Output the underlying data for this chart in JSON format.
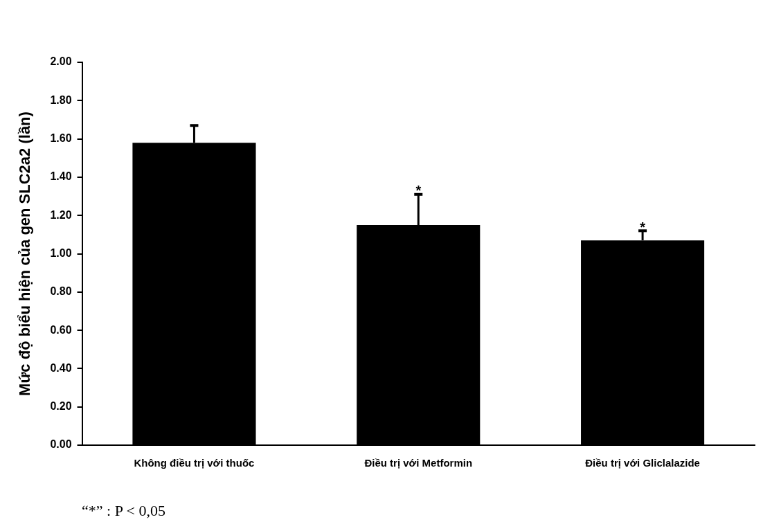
{
  "chart_data": {
    "type": "bar",
    "ylabel": "Mức độ biểu hiện của gen SLC2a2 (lần)",
    "categories": [
      "Không điều trị với thuốc",
      "Điều trị với Metformin",
      "Điều trị với Gliclalazide"
    ],
    "values": [
      1.58,
      1.15,
      1.07
    ],
    "errors": [
      [
        1.58,
        1.67
      ],
      [
        1.15,
        1.31
      ],
      [
        1.07,
        1.12
      ]
    ],
    "color": "#000000",
    "ylim": [
      0,
      2
    ],
    "yticks": [
      {
        "value": 0,
        "label": "0.00"
      },
      {
        "value": 0.2,
        "label": "0.20"
      },
      {
        "value": 0.4,
        "label": "0.40"
      },
      {
        "value": 0.6,
        "label": "0.60"
      },
      {
        "value": 0.8,
        "label": "0.80"
      },
      {
        "value": 1,
        "label": "1.00"
      },
      {
        "value": 1.2,
        "label": "1.20"
      },
      {
        "value": 1.4,
        "label": "1.40"
      },
      {
        "value": 1.6,
        "label": "1.60"
      },
      {
        "value": 1.8,
        "label": "1.80"
      },
      {
        "value": 2,
        "label": "2.00"
      }
    ],
    "grid": false,
    "legend": false,
    "annotations": [
      {
        "text": "*",
        "x": "Điều trị với Metformin",
        "y": 1.31
      },
      {
        "text": "*",
        "x": "Điều trị với Gliclalazide",
        "y": 1.12
      },
      "“*” : P < 0,05"
    ]
  }
}
